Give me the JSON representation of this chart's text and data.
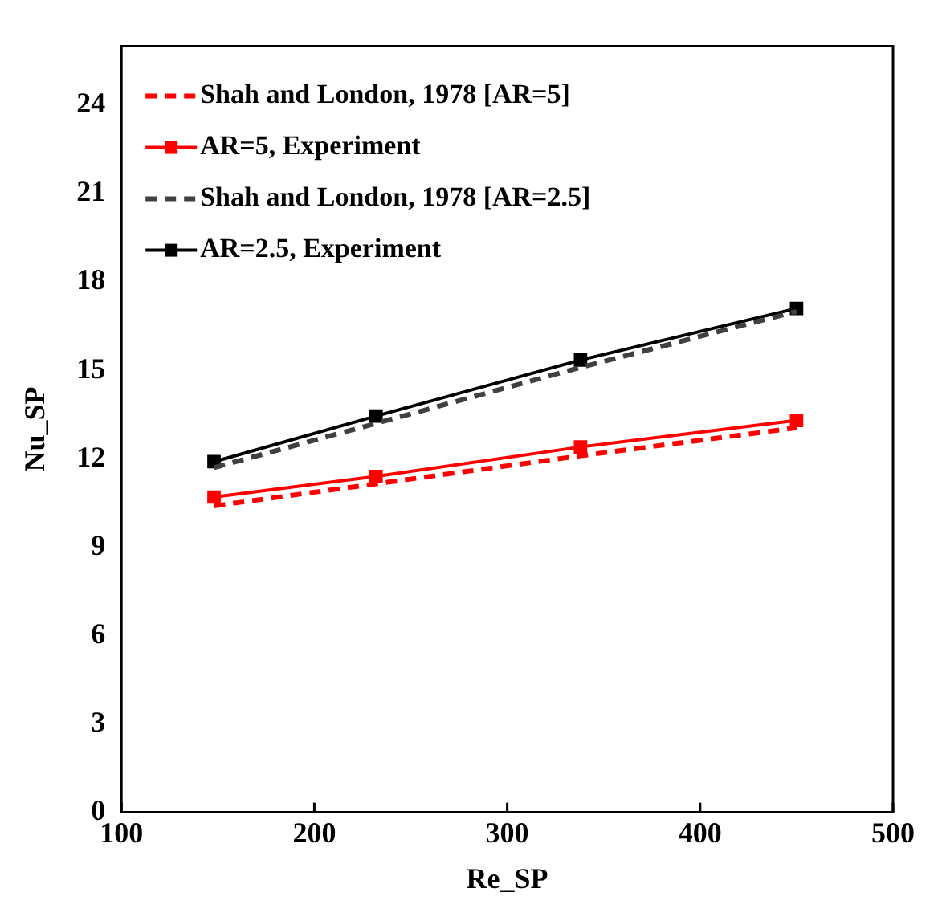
{
  "chart_data": {
    "type": "line",
    "xlabel": "Re_SP",
    "ylabel": "Nu_SP",
    "xlim": [
      100,
      500
    ],
    "xticks": [
      100,
      200,
      300,
      400,
      500
    ],
    "ylim": [
      0,
      26
    ],
    "yticks": [
      0,
      3,
      6,
      9,
      12,
      15,
      18,
      21,
      24
    ],
    "grid": false,
    "legend": "top left",
    "series": [
      {
        "name": "Shah and London, 1978 [AR=5]",
        "color": "#ff0000",
        "x": [
          148,
          232,
          338,
          450
        ],
        "values": [
          10.4,
          11.15,
          12.1,
          13.05
        ],
        "line_style": "dashed",
        "marker": "none"
      },
      {
        "name": "AR=5, Experiment",
        "color": "#ff0000",
        "x": [
          148,
          232,
          338,
          450
        ],
        "values": [
          10.7,
          11.4,
          12.4,
          13.3
        ],
        "line_style": "solid",
        "marker": "square"
      },
      {
        "name": "Shah and London, 1978 [AR=2.5]",
        "color": "#404040",
        "x": [
          148,
          232,
          338,
          450
        ],
        "values": [
          11.7,
          13.2,
          15.1,
          17.0
        ],
        "line_style": "dashed",
        "marker": "none"
      },
      {
        "name": "AR=2.5, Experiment",
        "color": "#000000",
        "x": [
          148,
          232,
          338,
          450
        ],
        "values": [
          11.9,
          13.45,
          15.35,
          17.1
        ],
        "line_style": "solid",
        "marker": "square"
      }
    ]
  }
}
